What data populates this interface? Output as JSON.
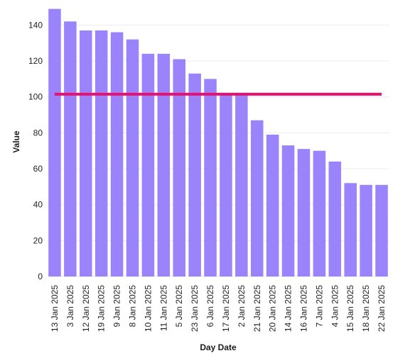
{
  "chart_data": {
    "type": "bar",
    "xlabel": "Day Date",
    "ylabel": "Value",
    "categories": [
      "13 Jan 2025",
      "3 Jan 2025",
      "12 Jan 2025",
      "19 Jan 2025",
      "9 Jan 2025",
      "8 Jan 2025",
      "10 Jan 2025",
      "11 Jan 2025",
      "5 Jan 2025",
      "23 Jan 2025",
      "6 Jan 2025",
      "17 Jan 2025",
      "2 Jan 2025",
      "21 Jan 2025",
      "20 Jan 2025",
      "14 Jan 2025",
      "16 Jan 2025",
      "7 Jan 2025",
      "4 Jan 2025",
      "15 Jan 2025",
      "18 Jan 2025",
      "22 Jan 2025"
    ],
    "values": [
      149,
      142,
      137,
      137,
      136,
      132,
      124,
      124,
      121,
      113,
      110,
      101,
      101,
      87,
      79,
      73,
      71,
      70,
      64,
      52,
      51,
      51
    ],
    "reference_line": {
      "value": 101.5,
      "color": "#e8116f"
    },
    "ylim": [
      0,
      150
    ],
    "yticks": [
      0,
      20,
      40,
      60,
      80,
      100,
      120,
      140
    ],
    "grid": true,
    "bar_color": "#9b84fb"
  }
}
